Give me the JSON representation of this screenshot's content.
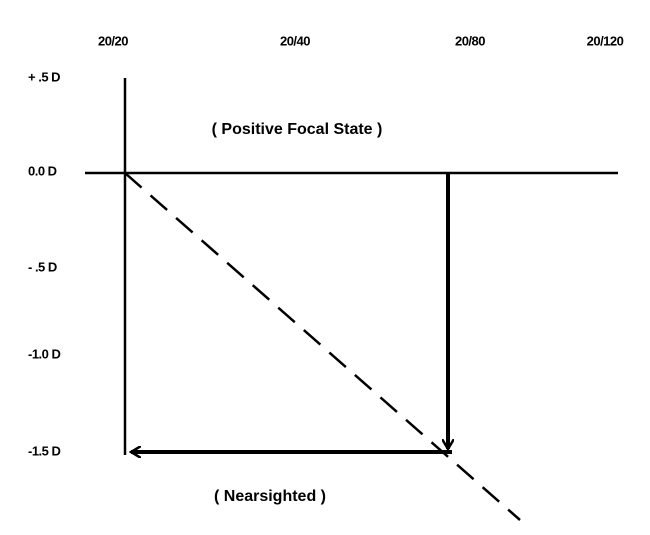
{
  "top_labels": [
    "20/20",
    "20/40",
    "20/80",
    "20/120"
  ],
  "left_labels": [
    "+ .5 D",
    "0.0 D",
    "- .5 D",
    "-1.0 D",
    "-1.5 D"
  ],
  "annotations": {
    "upper": "( Positive Focal State )",
    "lower": "( Nearsighted )"
  }
}
